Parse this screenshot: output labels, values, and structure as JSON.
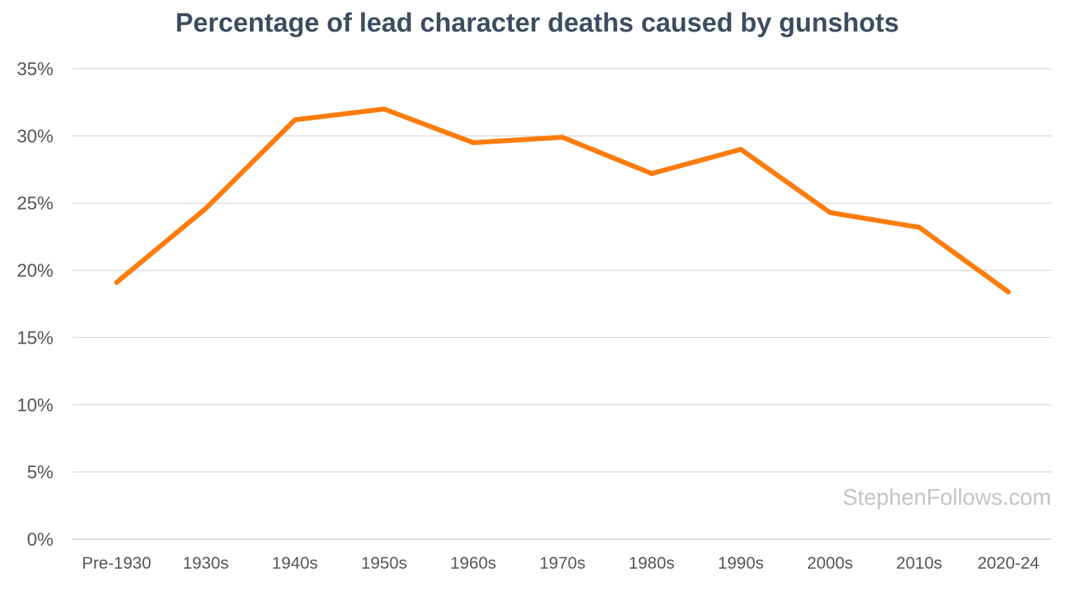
{
  "chart_data": {
    "type": "line",
    "title": "Percentage of lead character deaths caused by gunshots",
    "categories": [
      "Pre-1930",
      "1930s",
      "1940s",
      "1950s",
      "1960s",
      "1970s",
      "1980s",
      "1990s",
      "2000s",
      "2010s",
      "2020-24"
    ],
    "series": [
      {
        "values": [
          19.1,
          24.6,
          31.2,
          32.0,
          29.5,
          29.9,
          27.2,
          29.0,
          24.3,
          23.2,
          18.4
        ]
      }
    ],
    "y_tick_labels": [
      "0%",
      "5%",
      "10%",
      "15%",
      "20%",
      "25%",
      "30%",
      "35%"
    ],
    "y_ticks": [
      0,
      5,
      10,
      15,
      20,
      25,
      30,
      35
    ],
    "ylim": [
      0,
      35
    ],
    "grid": true,
    "line_color": "#fd7c0e",
    "grid_color": "#d9d9d9",
    "watermark": "StephenFollows.com"
  }
}
